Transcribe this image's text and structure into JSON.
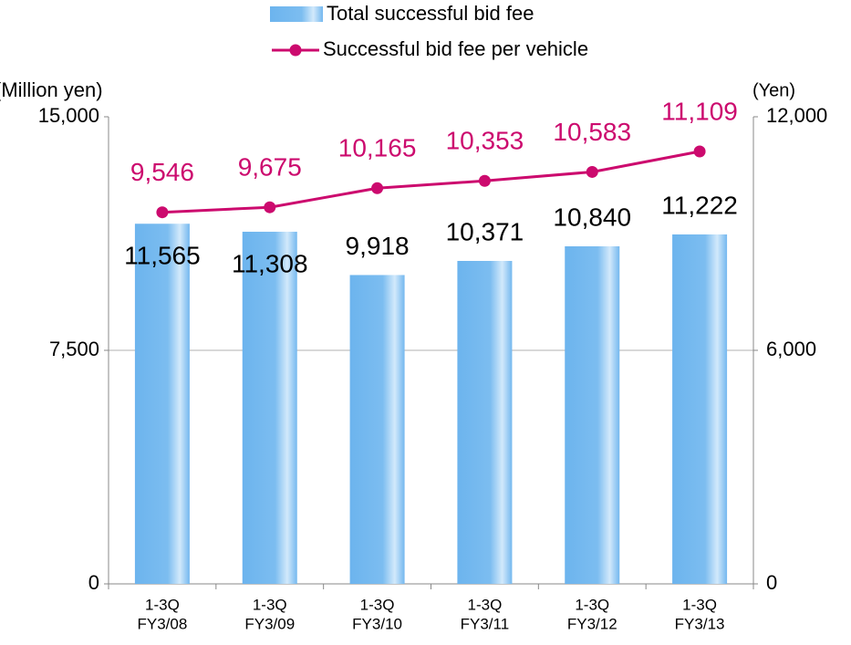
{
  "chart_data": {
    "type": "bar_line",
    "y_label": "(Million yen)",
    "y2_label": "(Yen)",
    "categories": [
      [
        "1-3Q",
        "FY3/08"
      ],
      [
        "1-3Q",
        "FY3/09"
      ],
      [
        "1-3Q",
        "FY3/10"
      ],
      [
        "1-3Q",
        "FY3/11"
      ],
      [
        "1-3Q",
        "FY3/12"
      ],
      [
        "1-3Q",
        "FY3/13"
      ]
    ],
    "series": [
      {
        "name": "Total successful bid fee",
        "type": "bar",
        "color": "#6cb4ee",
        "values": [
          11565,
          11308,
          9918,
          10371,
          10840,
          11222
        ],
        "value_labels": [
          "11,565",
          "11,308",
          "9,918",
          "10,371",
          "10,840",
          "11,222"
        ]
      },
      {
        "name": "Successful bid fee per vehicle",
        "type": "line",
        "axis": "y2",
        "color": "#cc0a6e",
        "values": [
          9546,
          9675,
          10165,
          10353,
          10583,
          11109
        ],
        "value_labels": [
          "9,546",
          "9,675",
          "10,165",
          "10,353",
          "10,583",
          "11,109"
        ]
      }
    ],
    "ylim": [
      0,
      15000
    ],
    "yticks": [
      0,
      {
        "value": 7500,
        "label": "7,500"
      },
      {
        "value": 15000,
        "label": "15,000"
      }
    ],
    "y2lim": [
      0,
      12000
    ],
    "y2ticks": [
      0,
      {
        "value": 6000,
        "label": "6,000"
      },
      {
        "value": 12000,
        "label": "12,000"
      }
    ],
    "grid": true,
    "legend": "top"
  }
}
